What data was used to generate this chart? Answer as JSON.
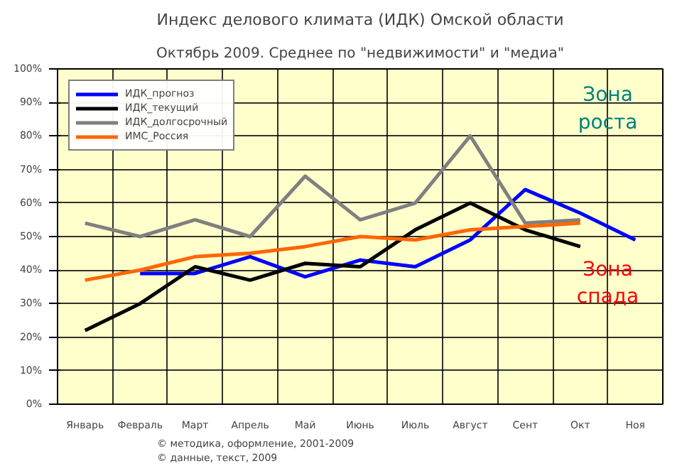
{
  "chart_data": {
    "type": "line",
    "title": "Индекс делового климата (ИДК) Омской области",
    "subtitle": "Октябрь 2009. Среднее по \"недвижимости\" и \"медиа\"",
    "categories": [
      "Январь",
      "Февраль",
      "Март",
      "Апрель",
      "Май",
      "Июнь",
      "Июль",
      "Август",
      "Сент",
      "Окт",
      "Ноя"
    ],
    "series": [
      {
        "name": "ИДК_прогноз",
        "color": "#0000ff",
        "values": [
          null,
          39,
          39,
          44,
          38,
          43,
          41,
          49,
          64,
          57,
          49
        ]
      },
      {
        "name": "ИДК_текущий",
        "color": "#000000",
        "values": [
          22,
          30,
          41,
          37,
          42,
          41,
          52,
          60,
          52,
          47,
          null
        ]
      },
      {
        "name": "ИДК_долгосрочный",
        "color": "#808080",
        "values": [
          54,
          50,
          55,
          50,
          68,
          55,
          60,
          80,
          54,
          55,
          null
        ]
      },
      {
        "name": "ИМС_Россия",
        "color": "#ff6600",
        "values": [
          37,
          40,
          44,
          45,
          47,
          50,
          49,
          52,
          53,
          54,
          null
        ]
      }
    ],
    "ylim": [
      0,
      100
    ],
    "yticks": [
      {
        "value": 0,
        "label": "0%"
      },
      {
        "value": 10,
        "label": "10%"
      },
      {
        "value": 20,
        "label": "20%"
      },
      {
        "value": 30,
        "label": "30%"
      },
      {
        "value": 40,
        "label": "40%"
      },
      {
        "value": 50,
        "label": "50%"
      },
      {
        "value": 60,
        "label": "60%"
      },
      {
        "value": 70,
        "label": "70%"
      },
      {
        "value": 80,
        "label": "80%"
      },
      {
        "value": 90,
        "label": "90%"
      },
      {
        "value": 100,
        "label": "100%"
      }
    ],
    "grid": true,
    "legend": "top left",
    "line_style": "solid",
    "annotations": [
      "Зона\nроста",
      "Зона\nспада",
      "© методика, оформление, 2001-2009",
      "© данные, текст, 2009"
    ]
  }
}
